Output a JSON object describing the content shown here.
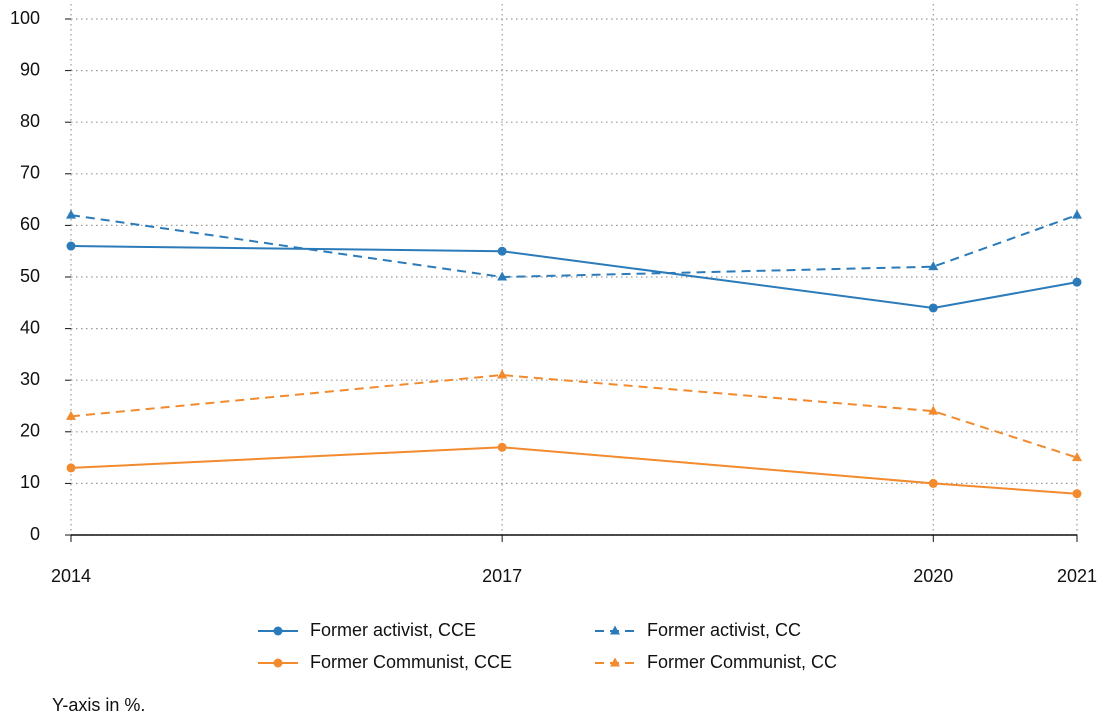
{
  "chart_data": {
    "type": "line",
    "x": [
      2014,
      2017,
      2020,
      2021
    ],
    "xlim": [
      2014,
      2021
    ],
    "xticks": [
      2014,
      2017,
      2020,
      2021
    ],
    "ylim": [
      0,
      100
    ],
    "yticks": [
      0,
      10,
      20,
      30,
      40,
      50,
      60,
      70,
      80,
      90,
      100
    ],
    "grid": true,
    "series": [
      {
        "name": "Former activist, CCE",
        "color": "#2b7bba",
        "dashed": false,
        "marker": "circle",
        "values": [
          56,
          55,
          44,
          49
        ]
      },
      {
        "name": "Former activist, CC",
        "color": "#2b7bba",
        "dashed": true,
        "marker": "triangle",
        "values": [
          62,
          50,
          52,
          62
        ]
      },
      {
        "name": "Former Communist, CCE",
        "color": "#f28a2e",
        "dashed": false,
        "marker": "circle",
        "values": [
          13,
          17,
          10,
          8
        ]
      },
      {
        "name": "Former Communist, CC",
        "color": "#f28a2e",
        "dashed": true,
        "marker": "triangle",
        "values": [
          23,
          31,
          24,
          15
        ]
      }
    ],
    "note": "Y-axis in %."
  }
}
